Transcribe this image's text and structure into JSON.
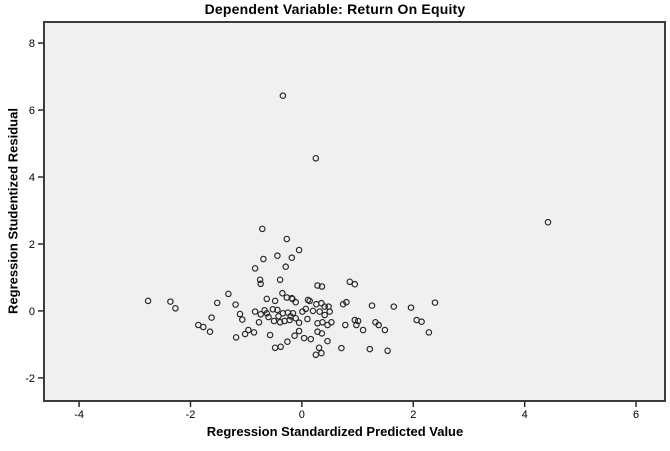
{
  "chart_data": {
    "type": "scatter",
    "title": "Dependent Variable: Return On Equity",
    "xlabel": "Regression Standardized Predicted Value",
    "ylabel": "Regression Studentized Residual",
    "xlim": [
      -4.63,
      6.52
    ],
    "ylim": [
      -2.69,
      8.63
    ],
    "x_ticks": [
      -4,
      -2,
      0,
      2,
      4,
      6
    ],
    "y_ticks": [
      -2,
      0,
      2,
      4,
      6,
      8
    ],
    "grid": false,
    "legend": false,
    "marker": "open-circle",
    "points": [
      [
        -2.76,
        0.3
      ],
      [
        -2.36,
        0.28
      ],
      [
        -2.27,
        0.08
      ],
      [
        -1.86,
        -0.42
      ],
      [
        -1.77,
        -0.48
      ],
      [
        -1.65,
        -0.62
      ],
      [
        -1.62,
        -0.2
      ],
      [
        -1.52,
        0.24
      ],
      [
        -1.32,
        0.51
      ],
      [
        -1.19,
        0.19
      ],
      [
        -1.18,
        -0.79
      ],
      [
        -1.11,
        -0.09
      ],
      [
        -1.07,
        -0.26
      ],
      [
        -1.02,
        -0.69
      ],
      [
        -0.96,
        -0.57
      ],
      [
        -0.86,
        -0.64
      ],
      [
        -0.84,
        1.27
      ],
      [
        -0.84,
        -0.02
      ],
      [
        -0.77,
        -0.34
      ],
      [
        -0.75,
        0.93
      ],
      [
        -0.74,
        0.81
      ],
      [
        -0.74,
        -0.1
      ],
      [
        -0.71,
        2.45
      ],
      [
        -0.69,
        1.55
      ],
      [
        -0.67,
        0.02
      ],
      [
        -0.63,
        0.36
      ],
      [
        -0.63,
        -0.07
      ],
      [
        -0.6,
        -0.18
      ],
      [
        -0.57,
        -0.72
      ],
      [
        -0.52,
        0.05
      ],
      [
        -0.5,
        -0.3
      ],
      [
        -0.48,
        0.3
      ],
      [
        -0.48,
        -1.1
      ],
      [
        -0.44,
        1.65
      ],
      [
        -0.44,
        0.03
      ],
      [
        -0.42,
        -0.16
      ],
      [
        -0.39,
        0.93
      ],
      [
        -0.39,
        -0.34
      ],
      [
        -0.38,
        -1.07
      ],
      [
        -0.35,
        0.53
      ],
      [
        -0.34,
        6.43
      ],
      [
        -0.34,
        -0.07
      ],
      [
        -0.31,
        -0.3
      ],
      [
        -0.29,
        1.32
      ],
      [
        -0.27,
        2.15
      ],
      [
        -0.27,
        0.4
      ],
      [
        -0.26,
        -0.92
      ],
      [
        -0.25,
        -0.05
      ],
      [
        -0.22,
        -0.27
      ],
      [
        -0.2,
        -0.16
      ],
      [
        -0.18,
        1.59
      ],
      [
        -0.18,
        0.38
      ],
      [
        -0.17,
        0.36
      ],
      [
        -0.16,
        -0.07
      ],
      [
        -0.13,
        -0.74
      ],
      [
        -0.11,
        0.26
      ],
      [
        -0.11,
        -0.22
      ],
      [
        -0.05,
        1.82
      ],
      [
        -0.05,
        -0.35
      ],
      [
        -0.05,
        -0.6
      ],
      [
        0.01,
        -0.02
      ],
      [
        0.04,
        -0.81
      ],
      [
        0.07,
        0.06
      ],
      [
        0.1,
        -0.24
      ],
      [
        0.11,
        0.33
      ],
      [
        0.14,
        0.3
      ],
      [
        0.16,
        -0.84
      ],
      [
        0.2,
        0.0
      ],
      [
        0.25,
        4.56
      ],
      [
        0.25,
        -1.31
      ],
      [
        0.26,
        0.2
      ],
      [
        0.28,
        0.76
      ],
      [
        0.28,
        -0.37
      ],
      [
        0.28,
        -0.62
      ],
      [
        0.31,
        -1.1
      ],
      [
        0.32,
        -0.02
      ],
      [
        0.35,
        0.23
      ],
      [
        0.35,
        -1.26
      ],
      [
        0.36,
        0.73
      ],
      [
        0.36,
        -0.67
      ],
      [
        0.37,
        -0.34
      ],
      [
        0.41,
        0.13
      ],
      [
        0.41,
        -0.12
      ],
      [
        0.46,
        -0.42
      ],
      [
        0.46,
        -0.9
      ],
      [
        0.48,
        0.13
      ],
      [
        0.5,
        -0.02
      ],
      [
        0.53,
        -0.34
      ],
      [
        0.71,
        -1.11
      ],
      [
        0.74,
        0.2
      ],
      [
        0.78,
        -0.42
      ],
      [
        0.8,
        0.26
      ],
      [
        0.86,
        0.87
      ],
      [
        0.95,
        0.8
      ],
      [
        0.95,
        -0.27
      ],
      [
        0.98,
        -0.42
      ],
      [
        1.01,
        -0.3
      ],
      [
        1.1,
        -0.57
      ],
      [
        1.22,
        -1.14
      ],
      [
        1.26,
        0.16
      ],
      [
        1.32,
        -0.34
      ],
      [
        1.38,
        -0.42
      ],
      [
        1.49,
        -0.57
      ],
      [
        1.54,
        -1.19
      ],
      [
        1.65,
        0.13
      ],
      [
        1.96,
        0.1
      ],
      [
        2.06,
        -0.27
      ],
      [
        2.15,
        -0.32
      ],
      [
        2.28,
        -0.64
      ],
      [
        2.39,
        0.25
      ],
      [
        4.42,
        2.65
      ]
    ]
  },
  "colors": {
    "page_bg": "#ffffff",
    "plot_bg": "#f0f0f0",
    "frame": "#3c3c3c",
    "tick": "#1a1a1a",
    "marker_stroke": "#262626",
    "text": "#000000"
  }
}
